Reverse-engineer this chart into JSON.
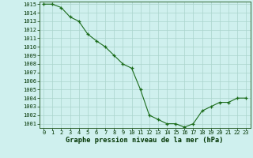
{
  "x": [
    0,
    1,
    2,
    3,
    4,
    5,
    6,
    7,
    8,
    9,
    10,
    11,
    12,
    13,
    14,
    15,
    16,
    17,
    18,
    19,
    20,
    21,
    22,
    23
  ],
  "y": [
    1015,
    1015,
    1014.6,
    1013.5,
    1013,
    1011.5,
    1010.7,
    1010,
    1009,
    1008,
    1007.5,
    1005,
    1002,
    1001.5,
    1001,
    1001,
    1000.6,
    1001,
    1002.5,
    1003,
    1003.5,
    1003.5,
    1004,
    1004
  ],
  "ylim_min": 1000.5,
  "ylim_max": 1015.3,
  "yticks": [
    1001,
    1002,
    1003,
    1004,
    1005,
    1006,
    1007,
    1008,
    1009,
    1010,
    1011,
    1012,
    1013,
    1014,
    1015
  ],
  "xticks": [
    0,
    1,
    2,
    3,
    4,
    5,
    6,
    7,
    8,
    9,
    10,
    11,
    12,
    13,
    14,
    15,
    16,
    17,
    18,
    19,
    20,
    21,
    22,
    23
  ],
  "xlabel": "Graphe pression niveau de la mer (hPa)",
  "line_color": "#1a6b1a",
  "marker": "+",
  "bg_color": "#cff0ee",
  "grid_color": "#aad4cc",
  "xlabel_color": "#003300",
  "tick_color": "#003300",
  "axis_color": "#336633",
  "tick_fontsize": 5.0,
  "xlabel_fontsize": 6.2
}
